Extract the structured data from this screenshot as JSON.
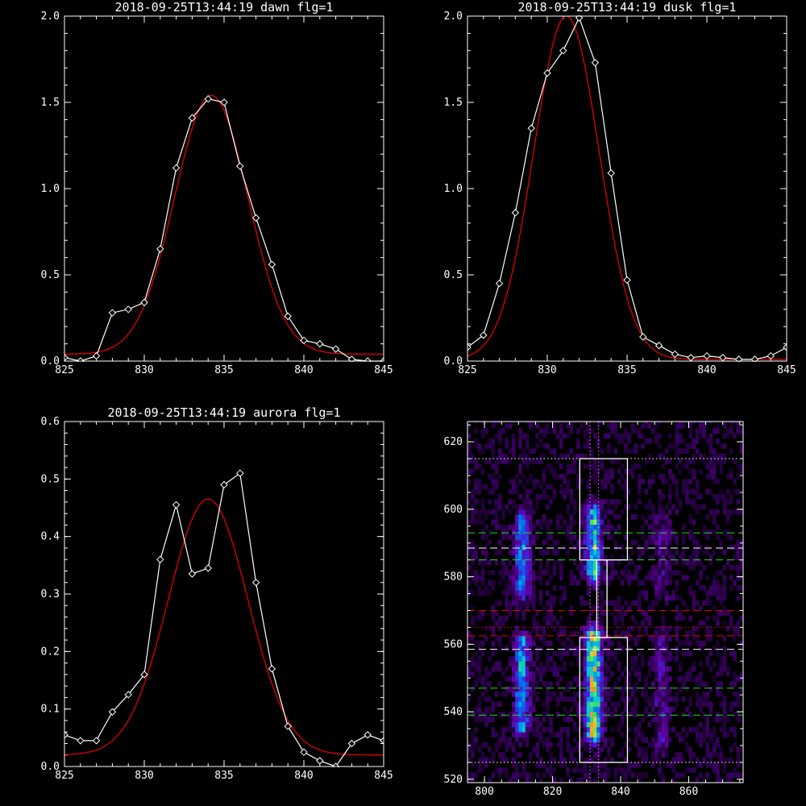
{
  "colors": {
    "background": "#000000",
    "axes": "#ffffff",
    "observed": "#ffffff",
    "fit": "#e00000",
    "green_line": "#22dd22",
    "magenta_line": "#ee66ee",
    "red_line": "#e00000"
  },
  "chart_data": [
    {
      "type": "line",
      "title": "2018-09-25T13:44:19 dawn flg=1",
      "xlabel": "",
      "ylabel": "",
      "xlim": [
        825,
        845
      ],
      "ylim": [
        0,
        2.0
      ],
      "xticks": [
        "825",
        "830",
        "835",
        "840",
        "845"
      ],
      "yticks": [
        "0.0",
        "0.5",
        "1.0",
        "1.5",
        "2.0"
      ],
      "series": [
        {
          "kind": "observed",
          "marker": "diamond",
          "x": [
            825,
            826,
            827,
            828,
            829,
            830,
            831,
            832,
            833,
            834,
            835,
            836,
            837,
            838,
            839,
            840,
            841,
            842,
            843,
            844,
            845
          ],
          "y": [
            0.02,
            0.0,
            0.03,
            0.28,
            0.3,
            0.34,
            0.65,
            1.12,
            1.41,
            1.52,
            1.5,
            1.13,
            0.83,
            0.56,
            0.26,
            0.12,
            0.1,
            0.07,
            0.01,
            0.0,
            0.0
          ]
        },
        {
          "kind": "fit",
          "gauss": {
            "amp": 1.5,
            "center": 834.2,
            "sigma": 2.3,
            "offset": 0.04
          }
        }
      ]
    },
    {
      "type": "line",
      "title": "2018-09-25T13:44:19 dusk flg=1",
      "xlabel": "",
      "ylabel": "",
      "xlim": [
        825,
        845
      ],
      "ylim": [
        0,
        2.0
      ],
      "xticks": [
        "825",
        "830",
        "835",
        "840",
        "845"
      ],
      "yticks": [
        "0.0",
        "0.5",
        "1.0",
        "1.5",
        "2.0"
      ],
      "series": [
        {
          "kind": "observed",
          "marker": "diamond",
          "x": [
            825,
            826,
            827,
            828,
            829,
            830,
            831,
            832,
            833,
            834,
            835,
            836,
            837,
            838,
            839,
            840,
            841,
            842,
            843,
            844,
            845
          ],
          "y": [
            0.08,
            0.15,
            0.45,
            0.86,
            1.35,
            1.67,
            1.8,
            1.99,
            1.73,
            1.09,
            0.47,
            0.14,
            0.09,
            0.04,
            0.02,
            0.03,
            0.02,
            0.01,
            0.01,
            0.03,
            0.08
          ]
        },
        {
          "kind": "fit",
          "gauss": {
            "amp": 1.99,
            "center": 831.2,
            "sigma": 2.05,
            "offset": 0.01
          }
        }
      ]
    },
    {
      "type": "line",
      "title": "2018-09-25T13:44:19 aurora flg=1",
      "xlabel": "",
      "ylabel": "",
      "xlim": [
        825,
        845
      ],
      "ylim": [
        0,
        0.6
      ],
      "xticks": [
        "825",
        "830",
        "835",
        "840",
        "845"
      ],
      "yticks": [
        "0.0",
        "0.1",
        "0.2",
        "0.3",
        "0.4",
        "0.5",
        "0.6"
      ],
      "series": [
        {
          "kind": "observed",
          "marker": "diamond",
          "x": [
            825,
            826,
            827,
            828,
            829,
            830,
            831,
            832,
            833,
            834,
            835,
            836,
            837,
            838,
            839,
            840,
            841,
            842,
            843,
            844,
            845
          ],
          "y": [
            0.055,
            0.045,
            0.045,
            0.095,
            0.125,
            0.16,
            0.36,
            0.455,
            0.335,
            0.345,
            0.49,
            0.51,
            0.32,
            0.17,
            0.07,
            0.025,
            0.01,
            0.0,
            0.04,
            0.055,
            0.045
          ]
        },
        {
          "kind": "fit",
          "gauss": {
            "amp": 0.445,
            "center": 834.0,
            "sigma": 2.5,
            "offset": 0.02
          }
        }
      ]
    },
    {
      "type": "heatmap",
      "title": "",
      "xlabel": "",
      "ylabel": "",
      "xlim": [
        795,
        876
      ],
      "ylim": [
        519,
        626
      ],
      "xticks": [
        "800",
        "820",
        "840",
        "860"
      ],
      "yticks": [
        "520",
        "540",
        "560",
        "580",
        "600",
        "620"
      ],
      "emission_bands": [
        {
          "x": 811,
          "y_from": 535,
          "y_to": 560,
          "strength": 0.6
        },
        {
          "x": 811,
          "y_from": 575,
          "y_to": 596,
          "strength": 0.55
        },
        {
          "x": 832,
          "y_from": 533,
          "y_to": 562,
          "strength": 1.0
        },
        {
          "x": 832,
          "y_from": 580,
          "y_to": 598,
          "strength": 0.75
        },
        {
          "x": 852,
          "y_from": 530,
          "y_to": 560,
          "strength": 0.25
        },
        {
          "x": 852,
          "y_from": 575,
          "y_to": 596,
          "strength": 0.2
        }
      ],
      "boxes": [
        {
          "x0": 828,
          "x1": 842,
          "y0": 525,
          "y1": 562
        },
        {
          "x0": 828,
          "x1": 842,
          "y0": 585,
          "y1": 615
        },
        {
          "x0": 833,
          "x1": 836,
          "y0": 562,
          "y1": 585
        }
      ],
      "hlines": [
        {
          "y": 615,
          "style": "dotted",
          "color": "#ffffff"
        },
        {
          "y": 525,
          "style": "dotted",
          "color": "#ffffff"
        },
        {
          "y": 593,
          "style": "dashed",
          "color": "#22dd22"
        },
        {
          "y": 588.5,
          "style": "dashed",
          "color": "#ffffff"
        },
        {
          "y": 585,
          "style": "dashed",
          "color": "#22dd22"
        },
        {
          "y": 570,
          "style": "dashed",
          "color": "#e00000"
        },
        {
          "y": 565,
          "style": "dotted",
          "color": "#e00000"
        },
        {
          "y": 562.5,
          "style": "dashed",
          "color": "#e00000"
        },
        {
          "y": 558.5,
          "style": "dashed",
          "color": "#ffffff"
        },
        {
          "y": 547,
          "style": "dashed",
          "color": "#22dd22"
        },
        {
          "y": 539,
          "style": "dashed",
          "color": "#22dd22"
        }
      ],
      "vlines": [
        {
          "x": 831,
          "style": "dotted",
          "color": "#ee66ee"
        },
        {
          "x": 833.5,
          "style": "dotted",
          "color": "#ee66ee"
        }
      ]
    }
  ]
}
